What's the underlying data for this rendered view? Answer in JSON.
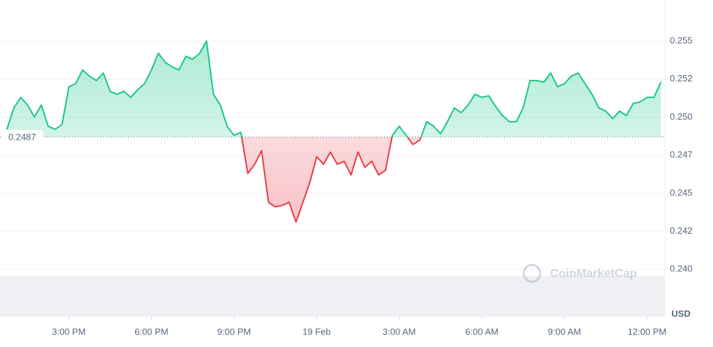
{
  "chart_data": {
    "type": "line",
    "x": [
      -11.25,
      -11,
      -10.75,
      -10.5,
      -10.25,
      -10,
      -9.75,
      -9.5,
      -9.25,
      -9,
      -8.75,
      -8.5,
      -8.25,
      -8,
      -7.75,
      -7.5,
      -7.25,
      -7,
      -6.75,
      -6.5,
      -6.25,
      -6,
      -5.75,
      -5.5,
      -5.25,
      -5,
      -4.75,
      -4.5,
      -4.25,
      -4,
      -3.75,
      -3.5,
      -3.25,
      -3,
      -2.75,
      -2.5,
      -2.25,
      -2,
      -1.75,
      -1.5,
      -1.25,
      -1,
      -0.75,
      -0.5,
      -0.25,
      0,
      0.25,
      0.5,
      0.75,
      1,
      1.25,
      1.5,
      1.75,
      2,
      2.25,
      2.5,
      2.75,
      3,
      3.25,
      3.5,
      3.75,
      4,
      4.25,
      4.5,
      4.75,
      5,
      5.25,
      5.5,
      5.75,
      6,
      6.25,
      6.5,
      6.75,
      7,
      7.25,
      7.5,
      7.75,
      8,
      8.25,
      8.5,
      8.75,
      9,
      9.25,
      9.5,
      9.75,
      10,
      10.25,
      10.5,
      10.75,
      11,
      11.25,
      11.5,
      11.75,
      12,
      12.25,
      12.5
    ],
    "values": [
      0.2492,
      0.2506,
      0.2513,
      0.2508,
      0.25,
      0.2508,
      0.2494,
      0.2492,
      0.2495,
      0.252,
      0.2522,
      0.2531,
      0.2527,
      0.2524,
      0.2529,
      0.2517,
      0.2515,
      0.2517,
      0.2513,
      0.2518,
      0.2522,
      0.2531,
      0.2542,
      0.2536,
      0.2533,
      0.2531,
      0.254,
      0.2538,
      0.2542,
      0.255,
      0.2515,
      0.2508,
      0.2494,
      0.2488,
      0.249,
      0.2463,
      0.2469,
      0.2478,
      0.2444,
      0.2441,
      0.2442,
      0.2444,
      0.2431,
      0.2444,
      0.2457,
      0.2474,
      0.2469,
      0.2477,
      0.2469,
      0.2471,
      0.2462,
      0.2477,
      0.2467,
      0.2471,
      0.2462,
      0.2465,
      0.2488,
      0.2494,
      0.2488,
      0.2482,
      0.2485,
      0.2497,
      0.2494,
      0.2489,
      0.2497,
      0.2506,
      0.2503,
      0.2508,
      0.2515,
      0.2513,
      0.2514,
      0.2507,
      0.2501,
      0.2497,
      0.2497,
      0.2506,
      0.2524,
      0.2524,
      0.2523,
      0.2529,
      0.252,
      0.2522,
      0.2527,
      0.2529,
      0.2522,
      0.2515,
      0.2506,
      0.2504,
      0.2499,
      0.2504,
      0.2501,
      0.2509,
      0.251,
      0.2513,
      0.2513,
      0.2523
    ],
    "baseline": 0.2487,
    "color_up": "#16c784",
    "color_down": "#ea3943",
    "xlim": [
      -11.5,
      12.65
    ],
    "xticks": [
      {
        "value": -9,
        "label": "3:00 PM"
      },
      {
        "value": -6,
        "label": "6:00 PM"
      },
      {
        "value": -3,
        "label": "9:00 PM"
      },
      {
        "value": 0,
        "label": "19 Feb"
      },
      {
        "value": 3,
        "label": "3:00 AM"
      },
      {
        "value": 6,
        "label": "6:00 AM"
      },
      {
        "value": 9,
        "label": "9:00 AM"
      },
      {
        "value": 12,
        "label": "12:00 PM"
      }
    ],
    "ylim": [
      0.2369,
      0.2577
    ],
    "yticks": [
      {
        "value": 0.24,
        "label": "0.240"
      },
      {
        "value": 0.2425,
        "label": "0.242"
      },
      {
        "value": 0.245,
        "label": "0.245"
      },
      {
        "value": 0.2475,
        "label": "0.247"
      },
      {
        "value": 0.25,
        "label": "0.250"
      },
      {
        "value": 0.2525,
        "label": "0.252"
      },
      {
        "value": 0.255,
        "label": "0.255"
      }
    ],
    "y_unit": "USD",
    "watermark": "CoinMarketCap",
    "grid": true
  }
}
